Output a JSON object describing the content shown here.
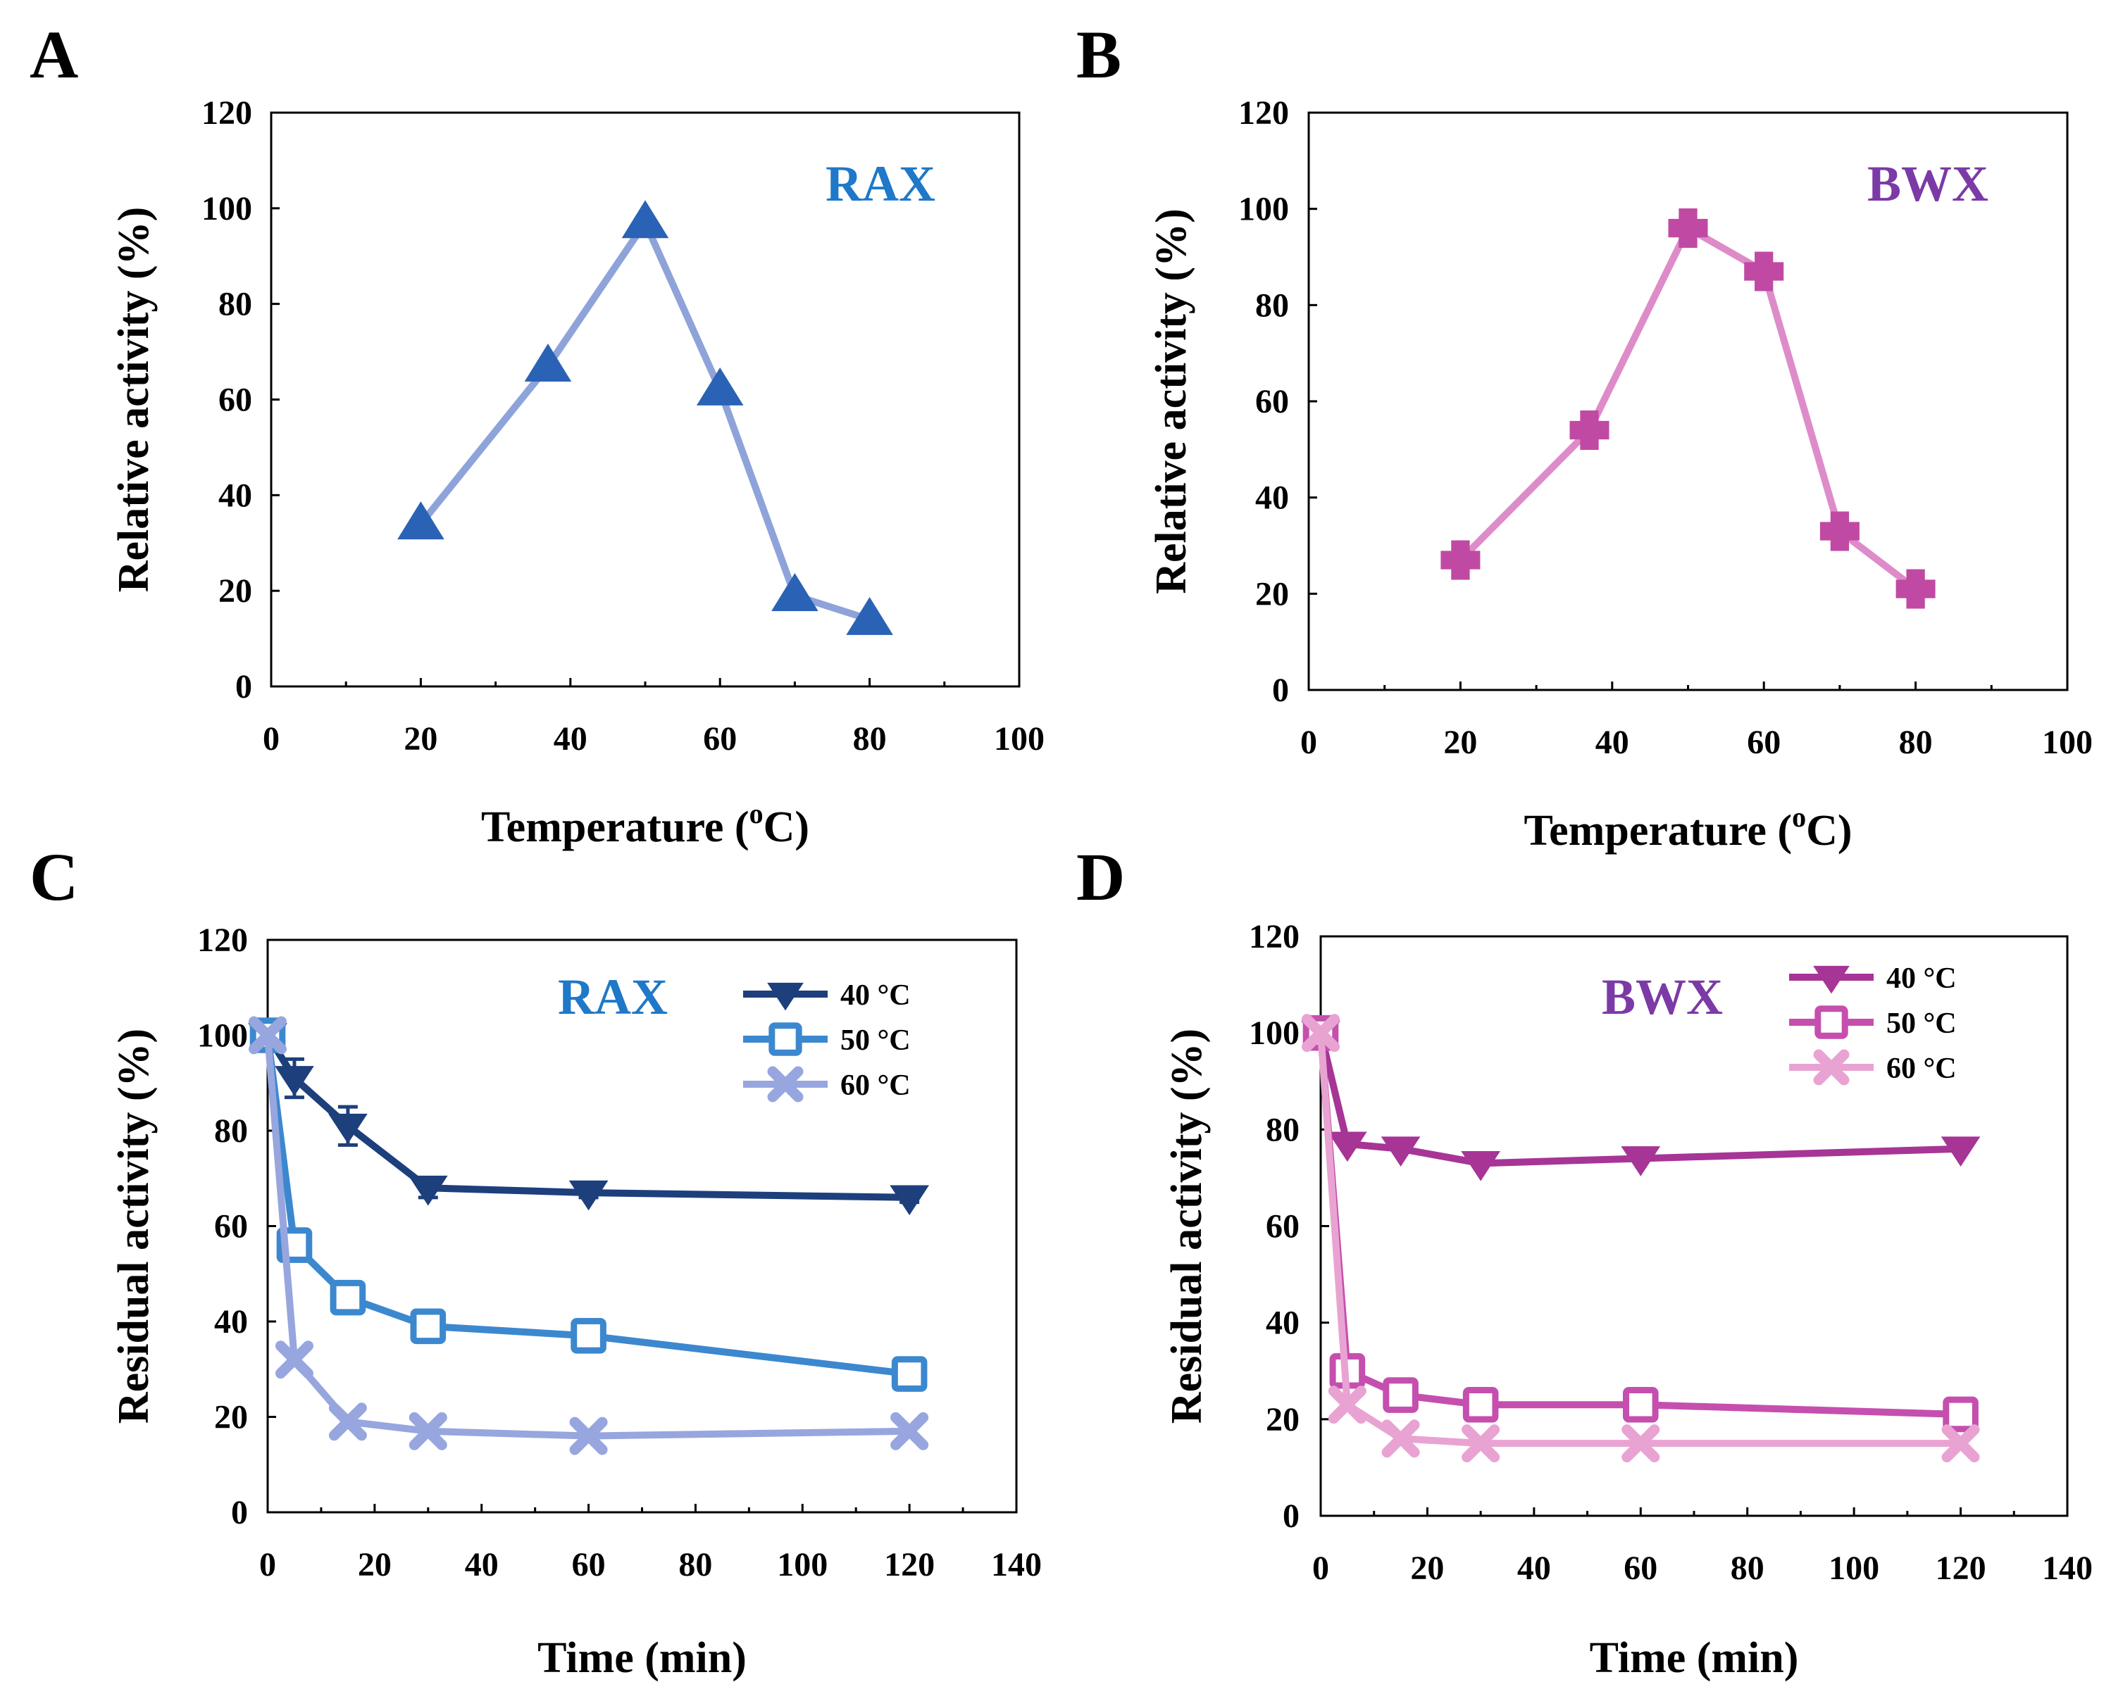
{
  "chart_data": [
    {
      "id": "A",
      "panel_label": "A",
      "type": "line",
      "title": "RAX",
      "xlabel": "Temperature (",
      "xlabel_sup": "o",
      "xlabel_tail": "C)",
      "ylabel": "Relative activity (%)",
      "xlim": [
        0,
        100
      ],
      "ylim": [
        0,
        120
      ],
      "xticks": [
        0,
        20,
        40,
        60,
        80,
        100
      ],
      "yticks": [
        0,
        20,
        40,
        60,
        80,
        100,
        120
      ],
      "label_color": "#1f78c8",
      "series": [
        {
          "name": "RAX",
          "marker": "triangle-up",
          "line_color": "#8ea3d9",
          "marker_color": "#2a63b5",
          "x": [
            20,
            37,
            50,
            60,
            70,
            80
          ],
          "y": [
            34,
            67,
            97,
            62,
            19,
            14
          ]
        }
      ]
    },
    {
      "id": "B",
      "panel_label": "B",
      "type": "line",
      "title": "BWX",
      "xlabel": "Temperature (",
      "xlabel_sup": "o",
      "xlabel_tail": "C)",
      "ylabel": "Relative activity (%)",
      "xlim": [
        0,
        100
      ],
      "ylim": [
        0,
        120
      ],
      "xticks": [
        0,
        20,
        40,
        60,
        80,
        100
      ],
      "yticks": [
        0,
        20,
        40,
        60,
        80,
        100,
        120
      ],
      "label_color": "#7b3aa6",
      "series": [
        {
          "name": "BWX",
          "marker": "plus-square",
          "line_color": "#dd8cc9",
          "marker_color": "#c04aa3",
          "x": [
            20,
            37,
            50,
            60,
            70,
            80
          ],
          "y": [
            27,
            54,
            96,
            87,
            33,
            21
          ]
        }
      ]
    },
    {
      "id": "C",
      "panel_label": "C",
      "type": "line",
      "title": "RAX",
      "xlabel": "Time (min)",
      "ylabel": "Residual activity (%)",
      "xlim": [
        0,
        140
      ],
      "ylim": [
        0,
        120
      ],
      "xticks": [
        0,
        20,
        40,
        60,
        80,
        100,
        120,
        140
      ],
      "yticks": [
        0,
        20,
        40,
        60,
        80,
        100,
        120
      ],
      "label_color": "#1f78c8",
      "legend_position": "top-right",
      "series": [
        {
          "name": "40 °C",
          "marker": "triangle-down",
          "line_color": "#1d3f7c",
          "marker_color": "#1d3f7c",
          "x": [
            0,
            5,
            15,
            30,
            60,
            120
          ],
          "y": [
            100,
            91,
            81,
            68,
            67,
            66
          ],
          "err": [
            0,
            4,
            4,
            2,
            1,
            1
          ]
        },
        {
          "name": "50 °C",
          "marker": "square-open",
          "line_color": "#3c88cf",
          "marker_color": "#3c88cf",
          "x": [
            0,
            5,
            15,
            30,
            60,
            120
          ],
          "y": [
            100,
            56,
            45,
            39,
            37,
            29
          ],
          "err": [
            0,
            0,
            0,
            0,
            0,
            0
          ]
        },
        {
          "name": "60 °C",
          "marker": "x-mark",
          "line_color": "#97a6de",
          "marker_color": "#97a6de",
          "x": [
            0,
            5,
            15,
            30,
            60,
            120
          ],
          "y": [
            100,
            32,
            19,
            17,
            16,
            17
          ],
          "err": [
            0,
            0,
            0,
            0,
            0,
            0
          ]
        }
      ]
    },
    {
      "id": "D",
      "panel_label": "D",
      "type": "line",
      "title": "BWX",
      "xlabel": "Time (min)",
      "ylabel": "Residual activity (%)",
      "xlim": [
        0,
        140
      ],
      "ylim": [
        0,
        120
      ],
      "xticks": [
        0,
        20,
        40,
        60,
        80,
        100,
        120,
        140
      ],
      "yticks": [
        0,
        20,
        40,
        60,
        80,
        100,
        120
      ],
      "label_color": "#7b3aa6",
      "legend_position": "top-right",
      "series": [
        {
          "name": "40 °C",
          "marker": "triangle-down",
          "line_color": "#a63596",
          "marker_color": "#a63596",
          "x": [
            0,
            5,
            15,
            30,
            60,
            120
          ],
          "y": [
            100,
            77,
            76,
            73,
            74,
            76
          ],
          "err": [
            0,
            0,
            0,
            0,
            0,
            0
          ]
        },
        {
          "name": "50 °C",
          "marker": "square-open",
          "line_color": "#c54fae",
          "marker_color": "#c54fae",
          "x": [
            0,
            5,
            15,
            30,
            60,
            120
          ],
          "y": [
            100,
            30,
            25,
            23,
            23,
            21
          ],
          "err": [
            0,
            0,
            0,
            0,
            0,
            0
          ]
        },
        {
          "name": "60 °C",
          "marker": "x-mark",
          "line_color": "#e9a3d2",
          "marker_color": "#e9a3d2",
          "x": [
            0,
            5,
            15,
            30,
            60,
            120
          ],
          "y": [
            100,
            23,
            16,
            15,
            15,
            15
          ],
          "err": [
            0,
            0,
            0,
            0,
            0,
            0
          ]
        }
      ]
    }
  ]
}
